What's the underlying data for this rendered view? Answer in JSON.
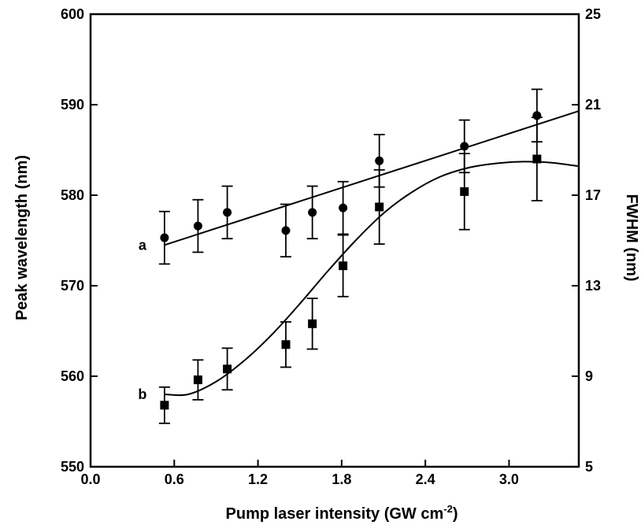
{
  "chart_data": {
    "type": "scatter",
    "xlabel": "Pump laser intensity (GW cm",
    "xlabel_sup": "-2",
    "xlabel_close": ")",
    "ylabel_left": "Peak wavelength (nm)",
    "ylabel_right": "FWHM (nm)",
    "xlim": [
      0.0,
      3.5
    ],
    "ylim_left": [
      550,
      600
    ],
    "ylim_right": [
      5,
      25
    ],
    "x_ticks": [
      "0.0",
      "0.6",
      "1.2",
      "1.8",
      "2.4",
      "3.0"
    ],
    "x_tick_values": [
      0.0,
      0.6,
      1.2,
      1.8,
      2.4,
      3.0
    ],
    "y_left_ticks": [
      "550",
      "560",
      "570",
      "580",
      "590",
      "600"
    ],
    "y_left_tick_values": [
      550,
      560,
      570,
      580,
      590,
      600
    ],
    "y_right_ticks": [
      "5",
      "9",
      "13",
      "17",
      "21",
      "25"
    ],
    "y_right_tick_values": [
      5,
      9,
      13,
      17,
      21,
      25
    ],
    "grid": false,
    "series": [
      {
        "label": "a",
        "marker": "circle",
        "points": [
          {
            "x": 0.53,
            "y": 575.3,
            "err": 2.9
          },
          {
            "x": 0.77,
            "y": 576.6,
            "err": 2.9
          },
          {
            "x": 0.98,
            "y": 578.1,
            "err": 2.9
          },
          {
            "x": 1.4,
            "y": 576.1,
            "err": 2.9
          },
          {
            "x": 1.59,
            "y": 578.1,
            "err": 2.9
          },
          {
            "x": 1.81,
            "y": 578.6,
            "err": 2.9
          },
          {
            "x": 2.07,
            "y": 583.8,
            "err": 2.9
          },
          {
            "x": 2.68,
            "y": 585.4,
            "err": 2.9
          },
          {
            "x": 3.2,
            "y": 588.8,
            "err": 2.9
          }
        ],
        "fit": [
          [
            0.53,
            574.5
          ],
          [
            3.5,
            589.3
          ]
        ]
      },
      {
        "label": "b",
        "marker": "square",
        "points": [
          {
            "x": 0.53,
            "y": 556.8,
            "err": 2.0
          },
          {
            "x": 0.77,
            "y": 559.6,
            "err": 2.2
          },
          {
            "x": 0.98,
            "y": 560.8,
            "err": 2.3
          },
          {
            "x": 1.4,
            "y": 563.5,
            "err": 2.5
          },
          {
            "x": 1.59,
            "y": 565.8,
            "err": 2.8
          },
          {
            "x": 1.81,
            "y": 572.2,
            "err": 3.4
          },
          {
            "x": 2.07,
            "y": 578.7,
            "err": 4.1
          },
          {
            "x": 2.68,
            "y": 580.4,
            "err": 4.2
          },
          {
            "x": 3.2,
            "y": 584.0,
            "err": 4.6
          }
        ],
        "fit": [
          [
            0.53,
            558.0
          ],
          [
            0.7,
            558.0
          ],
          [
            0.9,
            559.4
          ],
          [
            1.1,
            561.7
          ],
          [
            1.3,
            564.6
          ],
          [
            1.5,
            568.0
          ],
          [
            1.7,
            571.6
          ],
          [
            1.9,
            575.0
          ],
          [
            2.1,
            578.0
          ],
          [
            2.3,
            580.3
          ],
          [
            2.5,
            582.0
          ],
          [
            2.7,
            583.0
          ],
          [
            2.9,
            583.5
          ],
          [
            3.1,
            583.7
          ],
          [
            3.3,
            583.6
          ],
          [
            3.5,
            583.2
          ]
        ]
      }
    ]
  }
}
